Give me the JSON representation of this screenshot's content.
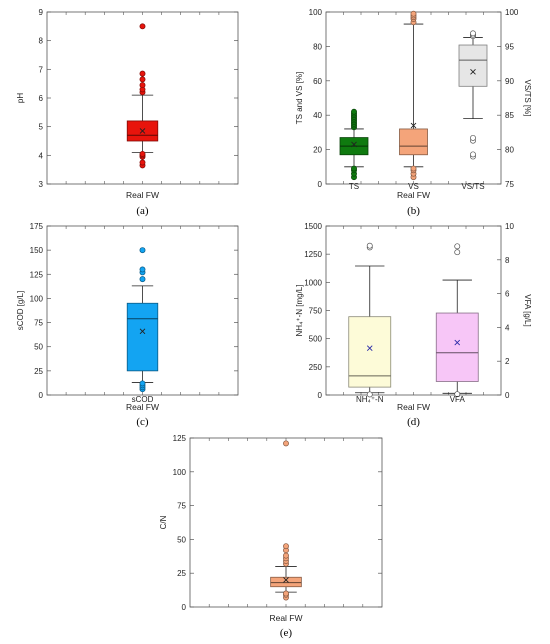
{
  "chart_data": [
    {
      "id": "a",
      "type": "box",
      "panel_label": "(a)",
      "xlabel": "Real FW",
      "ylabel": "pH",
      "ylim": [
        3,
        9
      ],
      "yticks": [
        3,
        4,
        5,
        6,
        7,
        8,
        9
      ],
      "series": [
        {
          "category": "",
          "axis": "left",
          "color": "#e8140c",
          "whisker_low": 4.1,
          "q1": 4.5,
          "median": 4.7,
          "q3": 5.2,
          "whisker_high": 6.1,
          "mean": 4.85,
          "outliers": [
            3.65,
            3.75,
            3.95,
            4.0,
            4.05,
            6.2,
            6.3,
            6.45,
            6.65,
            6.85,
            8.5
          ]
        }
      ]
    },
    {
      "id": "b",
      "type": "box",
      "panel_label": "(b)",
      "xlabel": "Real FW",
      "ylabel": "TS and VS [%]",
      "ylabel_right": "VS/TS [%]",
      "ylim": [
        0,
        100
      ],
      "yticks": [
        0,
        20,
        40,
        60,
        80,
        100
      ],
      "ylim_right": [
        75,
        100
      ],
      "yticks_right": [
        75,
        80,
        85,
        90,
        95,
        100
      ],
      "series": [
        {
          "category": "TS",
          "axis": "left",
          "color": "#0f7a0f",
          "whisker_low": 10,
          "q1": 17,
          "median": 22,
          "q3": 27,
          "whisker_high": 32,
          "mean": 23,
          "outliers": [
            4,
            6,
            8,
            9,
            33,
            34,
            35,
            36,
            37,
            38,
            39,
            40,
            41,
            42
          ]
        },
        {
          "category": "VS",
          "axis": "left",
          "color": "#f4a47a",
          "whisker_low": 10,
          "q1": 17,
          "median": 22,
          "q3": 32,
          "whisker_high": 93,
          "mean": 34,
          "outliers": [
            4,
            6,
            8,
            9,
            94,
            96,
            97,
            98,
            99
          ]
        },
        {
          "category": "VS/TS",
          "axis": "right",
          "color": "#e6e6e6",
          "whisker_low": 84.5,
          "q1": 89.2,
          "median": 93.0,
          "q3": 95.2,
          "whisker_high": 96.3,
          "mean": 91.3,
          "outliers": [
            79,
            79.3,
            81.3,
            81.7,
            96.5,
            96.7,
            96.9
          ]
        }
      ]
    },
    {
      "id": "c",
      "type": "box",
      "panel_label": "(c)",
      "xlabel": "Real FW",
      "ylabel": "sCOD [g/L]",
      "ylim": [
        0,
        175
      ],
      "yticks": [
        0,
        25,
        50,
        75,
        100,
        125,
        150,
        175
      ],
      "series": [
        {
          "category": "sCOD",
          "axis": "left",
          "color": "#13a4f2",
          "whisker_low": 13,
          "q1": 25,
          "median": 79,
          "q3": 95,
          "whisker_high": 113,
          "mean": 66,
          "outliers": [
            6,
            8,
            10,
            12,
            120,
            127,
            130,
            150
          ]
        }
      ]
    },
    {
      "id": "d",
      "type": "box",
      "panel_label": "(d)",
      "xlabel": "Real FW",
      "ylabel": "NH₄⁺-N [mg/L]",
      "ylabel_right": "VFA [g/L]",
      "ylim": [
        0,
        1500
      ],
      "yticks": [
        0,
        250,
        500,
        750,
        1000,
        1250,
        1500
      ],
      "ylim_right": [
        0,
        10
      ],
      "yticks_right": [
        0,
        2,
        4,
        6,
        8,
        10
      ],
      "series": [
        {
          "category": "NH₄⁺-N",
          "axis": "left",
          "color": "#fdfbd8",
          "whisker_low": 20,
          "q1": 70,
          "median": 170,
          "q3": 695,
          "whisker_high": 1145,
          "mean": 415,
          "outliers": [
            5,
            1310,
            1325
          ]
        },
        {
          "category": "VFA",
          "axis": "right",
          "color": "#f7c6f7",
          "whisker_low": 0.1,
          "q1": 0.8,
          "median": 2.5,
          "q3": 4.85,
          "whisker_high": 6.8,
          "mean": 3.1,
          "outliers": [
            0.05,
            8.45,
            8.8
          ]
        }
      ]
    },
    {
      "id": "e",
      "type": "box",
      "panel_label": "(e)",
      "xlabel": "Real FW",
      "ylabel": "C/N",
      "ylim": [
        0,
        125
      ],
      "yticks": [
        0,
        25,
        50,
        75,
        100,
        125
      ],
      "series": [
        {
          "category": "",
          "axis": "left",
          "color": "#f4a47a",
          "whisker_low": 11,
          "q1": 15,
          "median": 18,
          "q3": 22,
          "whisker_high": 30,
          "mean": 20,
          "outliers": [
            7,
            9,
            10,
            32,
            34,
            36,
            38,
            42,
            45,
            121
          ]
        }
      ]
    }
  ]
}
